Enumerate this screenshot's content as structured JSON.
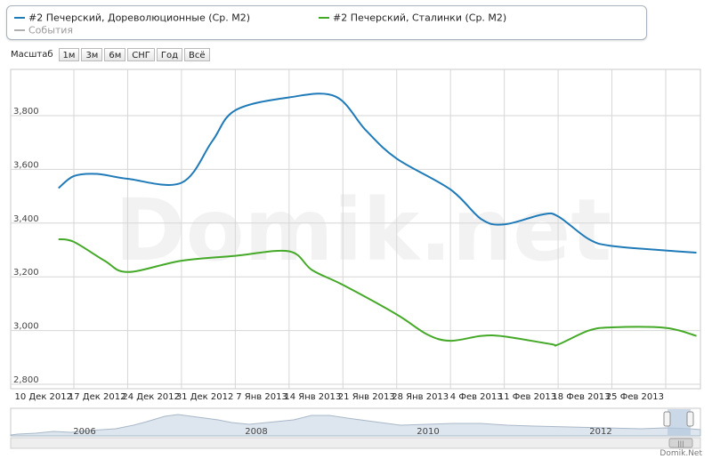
{
  "legend": {
    "series1": "#2 Печерский, Дореволюционные (Ср. М2)",
    "series2": "#2 Печерский, Сталинки (Ср. М2)",
    "events": "События"
  },
  "scale": {
    "label": "Масштаб",
    "buttons": [
      "1м",
      "3м",
      "6м",
      "СНГ",
      "Год",
      "Всё"
    ]
  },
  "watermark": "Domik.net",
  "credit": "Domik.Net",
  "colors": {
    "series1": "#1f7ab8",
    "series2": "#45a928",
    "events": "#b0b0b0",
    "grid": "#d6d6d6"
  },
  "navigator": {
    "years": [
      "2006",
      "2008",
      "2010",
      "2012"
    ]
  },
  "chart_data": {
    "type": "line",
    "x": [
      "10 Дек 2012",
      "17 Дек 2012",
      "24 Дек 2012",
      "31 Дек 2012",
      "7 Янв 2013",
      "14 Янв 2013",
      "21 Янв 2013",
      "28 Янв 2013",
      "4 Фев 2013",
      "11 Фев 2013",
      "18 Фев 2013",
      "25 Фев 2013"
    ],
    "ylim": [
      2800,
      3900
    ],
    "yticks": [
      "2,800",
      "3,000",
      "3,200",
      "3,400",
      "3,600",
      "3,800"
    ],
    "series": [
      {
        "name": "#2 Печерский, Дореволюционные (Ср. М2)",
        "color": "#1f7ab8",
        "points": [
          [
            "8 Дек 2012",
            3530
          ],
          [
            "10 Дек 2012",
            3575
          ],
          [
            "13 Дек 2012",
            3583
          ],
          [
            "17 Дек 2012",
            3565
          ],
          [
            "24 Дек 2012",
            3550
          ],
          [
            "28 Дек 2012",
            3705
          ],
          [
            "31 Дек 2012",
            3820
          ],
          [
            "7 Янв 2013",
            3868
          ],
          [
            "13 Янв 2013",
            3872
          ],
          [
            "17 Янв 2013",
            3745
          ],
          [
            "21 Янв 2013",
            3640
          ],
          [
            "28 Янв 2013",
            3525
          ],
          [
            "1 Фев 2013",
            3415
          ],
          [
            "4 Фев 2013",
            3395
          ],
          [
            "9 Фев 2013",
            3432
          ],
          [
            "11 Фев 2013",
            3425
          ],
          [
            "15 Фев 2013",
            3340
          ],
          [
            "18 Фев 2013",
            3315
          ],
          [
            "25 Фев 2013",
            3298
          ],
          [
            "1 Мар 2013",
            3290
          ]
        ]
      },
      {
        "name": "#2 Печерский, Сталинки (Ср. М2)",
        "color": "#45a928",
        "points": [
          [
            "8 Дек 2012",
            3340
          ],
          [
            "10 Дек 2012",
            3330
          ],
          [
            "14 Дек 2012",
            3260
          ],
          [
            "17 Дек 2012",
            3218
          ],
          [
            "24 Дек 2012",
            3260
          ],
          [
            "31 Дек 2012",
            3278
          ],
          [
            "7 Янв 2013",
            3295
          ],
          [
            "10 Янв 2013",
            3225
          ],
          [
            "14 Янв 2013",
            3170
          ],
          [
            "21 Янв 2013",
            3060
          ],
          [
            "25 Янв 2013",
            2985
          ],
          [
            "28 Янв 2013",
            2962
          ],
          [
            "1 Фев 2013",
            2980
          ],
          [
            "4 Фев 2013",
            2978
          ],
          [
            "10 Фев 2013",
            2950
          ],
          [
            "11 Фев 2013",
            2948
          ],
          [
            "15 Фев 2013",
            3000
          ],
          [
            "18 Фев 2013",
            3012
          ],
          [
            "25 Фев 2013",
            3010
          ],
          [
            "1 Мар 2013",
            2980
          ]
        ]
      }
    ]
  }
}
